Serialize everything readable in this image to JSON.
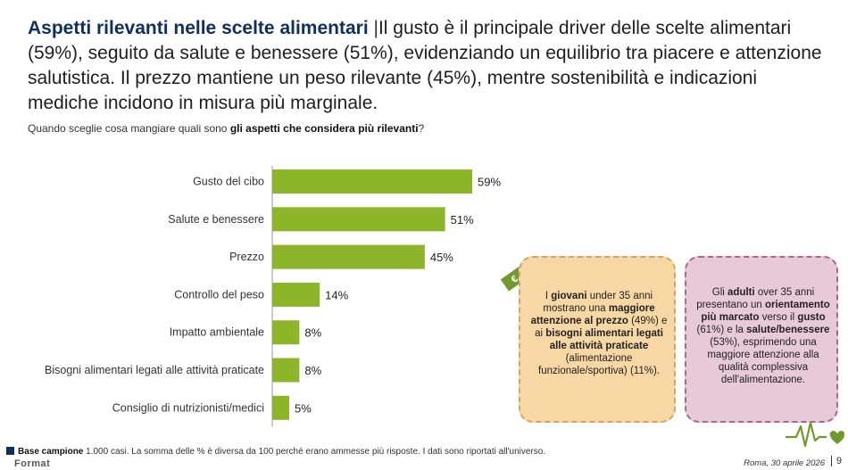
{
  "header": {
    "title_bold": "Aspetti rilevanti nelle scelte alimentari",
    "separator": "|",
    "title_rest": "Il gusto è il principale driver delle scelte alimentari (59%), seguito da salute e benessere (51%), evidenziando un equilibrio tra piacere e attenzione salutistica. Il prezzo mantiene un peso rilevante (45%), mentre sostenibilità e indicazioni mediche incidono in misura più marginale."
  },
  "question": {
    "prefix": "Quando sceglie cosa mangiare quali sono ",
    "bold": "gli aspetti che considera più rilevanti",
    "suffix": "?"
  },
  "chart_data": {
    "type": "bar",
    "orientation": "horizontal",
    "categories": [
      "Gusto del cibo",
      "Salute e benessere",
      "Prezzo",
      "Controllo del peso",
      "Impatto ambientale",
      "Bisogni alimentari legati alle attività praticate",
      "Consiglio di nutrizionisti/medici"
    ],
    "values": [
      59,
      51,
      45,
      14,
      8,
      8,
      5
    ],
    "value_labels": [
      "59%",
      "51%",
      "45%",
      "14%",
      "8%",
      "8%",
      "5%"
    ],
    "bar_color": "#8db52a",
    "xlim": [
      0,
      60
    ],
    "grid": false,
    "title": "",
    "xlabel": "",
    "ylabel": ""
  },
  "callouts": {
    "young": {
      "parts": [
        {
          "t": "I ",
          "b": false
        },
        {
          "t": "giovani",
          "b": true
        },
        {
          "t": " under 35 anni mostrano una ",
          "b": false
        },
        {
          "t": "maggiore attenzione al prezzo",
          "b": true
        },
        {
          "t": " (49%) e ai ",
          "b": false
        },
        {
          "t": "bisogni alimentari legati alle attività praticate",
          "b": true
        },
        {
          "t": " (alimentazione funzionale/sportiva) (11%).",
          "b": false
        }
      ],
      "bg": "#f7d7a4"
    },
    "adult": {
      "parts": [
        {
          "t": "Gli ",
          "b": false
        },
        {
          "t": "adulti",
          "b": true
        },
        {
          "t": " over 35 anni presentano un ",
          "b": false
        },
        {
          "t": "orientamento più marcato",
          "b": true
        },
        {
          "t": " verso il ",
          "b": false
        },
        {
          "t": "gusto",
          "b": true
        },
        {
          "t": " (61%) e la ",
          "b": false
        },
        {
          "t": "salute/benessere",
          "b": true
        },
        {
          "t": " (53%), esprimendo una maggiore attenzione alla qualità complessiva dell'alimentazione.",
          "b": false
        }
      ],
      "bg": "#e7c9d7"
    }
  },
  "icons": {
    "tag": "price-tag-icon",
    "heart": "heartbeat-icon",
    "tag_color": "#6f9a2d",
    "heart_color": "#6f9a2d"
  },
  "footer": {
    "base_label": "Base campione",
    "base_text": " 1.000 casi. La somma delle % è diversa da 100 perché erano ammesse più risposte. I dati sono riportati all'universo.",
    "brand": "Format",
    "date": "Roma, 30 aprile 2026",
    "page": "9"
  }
}
